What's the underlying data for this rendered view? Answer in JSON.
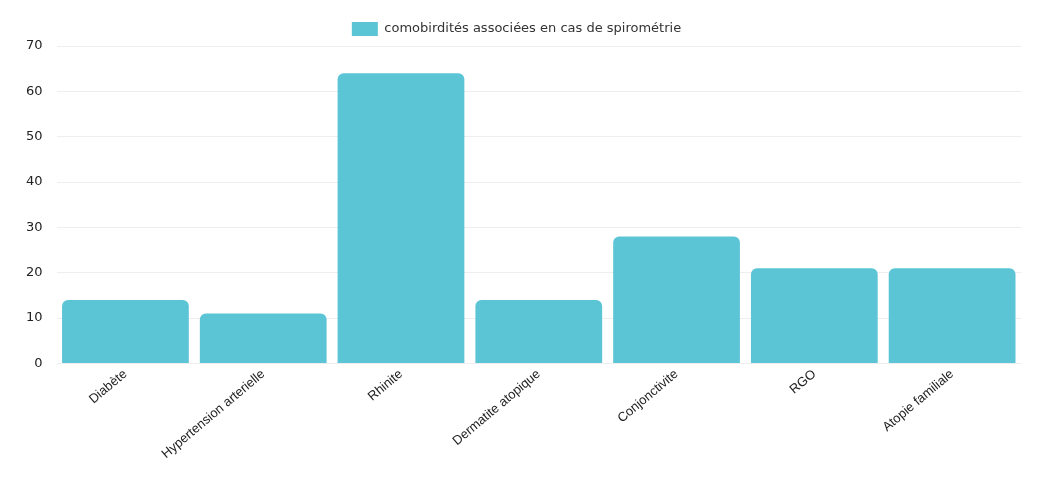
{
  "chart_data": {
    "type": "bar",
    "categories": [
      "Diabète",
      "Hypertension arterielle",
      "Rhinite",
      "Dermatite atopique",
      "Conjonctivite",
      "RGO",
      "Atopie familiale"
    ],
    "series": [
      {
        "name": "comobirdités associées en cas de spirométrie",
        "color": "#5bc5d6",
        "values": [
          14,
          11,
          64,
          14,
          28,
          21,
          21
        ]
      }
    ],
    "ylim": [
      0,
      70
    ],
    "yticks": [
      0,
      10,
      20,
      30,
      40,
      50,
      60,
      70
    ],
    "grid": "y",
    "legend": "top"
  }
}
